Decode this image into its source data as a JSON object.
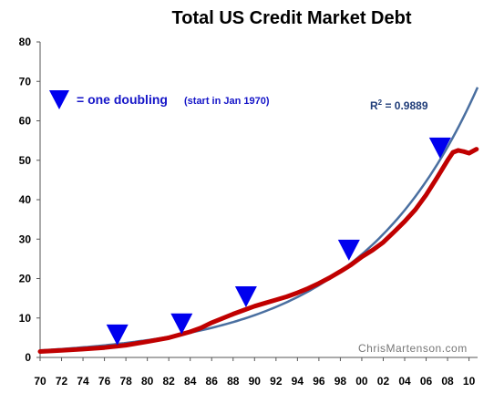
{
  "chart_data": {
    "type": "line",
    "title": "Total US Credit Market Debt",
    "xlabel": "",
    "ylabel": "",
    "x_tick_labels": [
      "70",
      "72",
      "74",
      "76",
      "78",
      "80",
      "82",
      "84",
      "86",
      "88",
      "90",
      "92",
      "94",
      "96",
      "98",
      "00",
      "02",
      "04",
      "06",
      "08",
      "10"
    ],
    "y_ticks": [
      0,
      10,
      20,
      30,
      40,
      50,
      60,
      70,
      80
    ],
    "xlim": [
      1970,
      2010.8
    ],
    "ylim": [
      0,
      80
    ],
    "grid": false,
    "series": [
      {
        "color": "#c00000",
        "x": [
          1970,
          1972,
          1974,
          1976,
          1978,
          1980,
          1982,
          1984,
          1985,
          1986,
          1987,
          1988,
          1989,
          1990,
          1991,
          1992,
          1993,
          1994,
          1995,
          1996,
          1997,
          1998,
          1999,
          2000,
          2001,
          2002,
          2003,
          2004,
          2005,
          2006,
          2007,
          2008,
          2008.5,
          2009,
          2009.5,
          2010,
          2010.7
        ],
        "y": [
          1.5,
          1.8,
          2.1,
          2.5,
          3.1,
          4.0,
          5.0,
          6.5,
          7.5,
          8.8,
          9.9,
          11.0,
          12.0,
          13.0,
          13.8,
          14.6,
          15.4,
          16.4,
          17.5,
          18.8,
          20.2,
          21.8,
          23.5,
          25.5,
          27.2,
          29.2,
          31.8,
          34.5,
          37.5,
          41.2,
          45.5,
          50.0,
          52.0,
          52.5,
          52.2,
          51.8,
          52.8
        ]
      },
      {
        "color": "#4a6fa0",
        "fit": "exponential",
        "y_at_1970": 1.8,
        "y_at_2010.8": 68.5
      }
    ],
    "markers": [
      {
        "x": 1977.2,
        "y": 5.8
      },
      {
        "x": 1983.2,
        "y": 8.6
      },
      {
        "x": 1989.2,
        "y": 15.5
      },
      {
        "x": 1998.8,
        "y": 27.3
      },
      {
        "x": 2007.3,
        "y": 53.2
      }
    ],
    "legend": {
      "label": "= one doubling",
      "note": "(start in Jan 1970)",
      "placement": "top-left"
    },
    "annotations": {
      "r2_prefix": "R",
      "r2_superscript": "2",
      "r2_value": " = 0.9889",
      "watermark": "ChrisMartenson.com"
    }
  }
}
